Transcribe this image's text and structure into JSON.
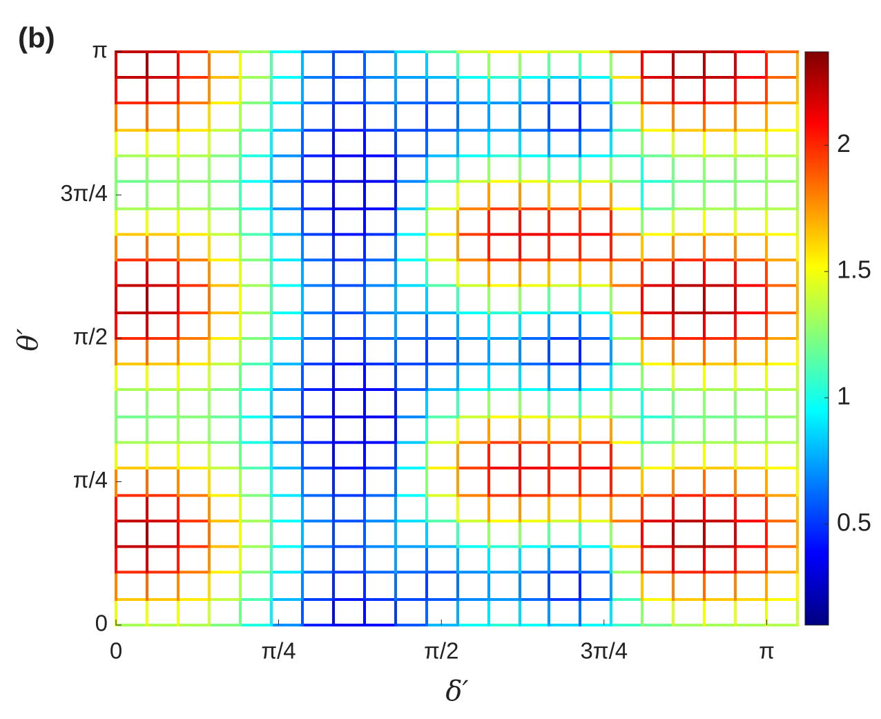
{
  "chart_data": {
    "type": "mesh",
    "panel_label": "(b)",
    "xlabel": "δ′",
    "ylabel": "θ′",
    "colormap": "jet",
    "x": [
      0,
      0.15,
      0.3,
      0.45,
      0.6,
      0.75,
      0.9,
      1.05,
      1.2,
      1.35,
      1.5,
      1.65,
      1.8,
      1.95,
      2.09,
      2.24,
      2.39,
      2.54,
      2.69,
      2.84,
      2.99,
      3.14,
      3.29
    ],
    "y": [
      0,
      0.14,
      0.29,
      0.43,
      0.57,
      0.71,
      0.86,
      1.0,
      1.14,
      1.29,
      1.43,
      1.57,
      1.71,
      1.86,
      2.0,
      2.14,
      2.28,
      2.43,
      2.57,
      2.71,
      2.86,
      3.0,
      3.14
    ],
    "z": [
      [
        1.32,
        1.33,
        1.35,
        1.32,
        1.15,
        0.88,
        0.53,
        0.37,
        0.33,
        0.45,
        0.7,
        0.9,
        1.05,
        1.03,
        0.9,
        0.83,
        1.05,
        1.09,
        1.28,
        1.33,
        1.32,
        1.34,
        1.35
      ],
      [
        1.62,
        1.66,
        1.62,
        1.5,
        1.27,
        0.97,
        0.62,
        0.43,
        0.42,
        0.57,
        0.52,
        0.64,
        0.74,
        0.7,
        0.55,
        0.45,
        0.74,
        1.45,
        1.61,
        1.66,
        1.62,
        1.58,
        1.47
      ],
      [
        1.95,
        2.03,
        1.93,
        1.7,
        1.4,
        1.08,
        0.73,
        0.5,
        0.53,
        0.7,
        0.52,
        0.64,
        0.74,
        0.7,
        0.55,
        0.45,
        0.74,
        1.85,
        1.98,
        2.03,
        1.95,
        1.85,
        1.6
      ],
      [
        2.17,
        2.27,
        2.12,
        1.83,
        1.49,
        1.14,
        0.79,
        0.54,
        0.59,
        0.79,
        0.7,
        0.9,
        1.05,
        1.03,
        0.9,
        0.83,
        1.05,
        2.11,
        2.22,
        2.27,
        2.17,
        2.03,
        1.69
      ],
      [
        2.17,
        2.27,
        2.12,
        1.83,
        1.49,
        1.14,
        0.79,
        0.54,
        0.59,
        0.79,
        0.97,
        1.3,
        1.52,
        1.53,
        1.44,
        1.39,
        1.52,
        2.11,
        2.22,
        2.27,
        2.17,
        2.03,
        1.69
      ],
      [
        1.95,
        2.03,
        1.93,
        1.7,
        1.4,
        1.08,
        0.73,
        0.5,
        0.53,
        0.7,
        1.21,
        1.66,
        1.94,
        1.98,
        1.92,
        1.9,
        1.94,
        1.85,
        1.98,
        2.03,
        1.95,
        1.85,
        1.6
      ],
      [
        1.62,
        1.66,
        1.62,
        1.5,
        1.27,
        0.97,
        0.62,
        0.43,
        0.42,
        0.57,
        1.3,
        1.8,
        2.1,
        2.15,
        2.1,
        2.1,
        2.1,
        1.45,
        1.61,
        1.66,
        1.62,
        1.58,
        1.47
      ],
      [
        1.32,
        1.33,
        1.35,
        1.32,
        1.15,
        0.88,
        0.53,
        0.37,
        0.33,
        0.45,
        1.21,
        1.66,
        1.94,
        1.98,
        1.92,
        1.9,
        1.94,
        1.09,
        1.28,
        1.33,
        1.32,
        1.34,
        1.35
      ],
      [
        1.2,
        1.2,
        1.25,
        1.25,
        1.1,
        0.85,
        0.5,
        0.35,
        0.3,
        0.4,
        0.97,
        1.3,
        1.52,
        1.53,
        1.44,
        1.39,
        1.52,
        0.95,
        1.15,
        1.2,
        1.2,
        1.25,
        1.3
      ],
      [
        1.32,
        1.33,
        1.35,
        1.32,
        1.15,
        0.88,
        0.53,
        0.37,
        0.33,
        0.45,
        0.7,
        0.9,
        1.05,
        1.03,
        0.9,
        0.83,
        1.05,
        1.09,
        1.28,
        1.33,
        1.32,
        1.34,
        1.35
      ],
      [
        1.62,
        1.66,
        1.62,
        1.5,
        1.27,
        0.97,
        0.62,
        0.43,
        0.42,
        0.57,
        0.52,
        0.64,
        0.74,
        0.7,
        0.55,
        0.45,
        0.74,
        1.45,
        1.61,
        1.66,
        1.62,
        1.58,
        1.47
      ],
      [
        1.95,
        2.03,
        1.93,
        1.7,
        1.4,
        1.08,
        0.73,
        0.5,
        0.53,
        0.7,
        0.52,
        0.64,
        0.74,
        0.7,
        0.55,
        0.45,
        0.74,
        1.85,
        1.98,
        2.03,
        1.95,
        1.85,
        1.6
      ],
      [
        2.17,
        2.27,
        2.12,
        1.83,
        1.49,
        1.14,
        0.79,
        0.54,
        0.59,
        0.79,
        0.7,
        0.9,
        1.05,
        1.03,
        0.9,
        0.83,
        1.05,
        2.11,
        2.22,
        2.27,
        2.17,
        2.03,
        1.69
      ],
      [
        2.17,
        2.27,
        2.12,
        1.83,
        1.49,
        1.14,
        0.79,
        0.54,
        0.59,
        0.79,
        0.97,
        1.3,
        1.52,
        1.53,
        1.44,
        1.39,
        1.52,
        2.11,
        2.22,
        2.27,
        2.17,
        2.03,
        1.69
      ],
      [
        1.95,
        2.03,
        1.93,
        1.7,
        1.4,
        1.08,
        0.73,
        0.5,
        0.53,
        0.7,
        1.21,
        1.66,
        1.94,
        1.98,
        1.92,
        1.9,
        1.94,
        1.85,
        1.98,
        2.03,
        1.95,
        1.85,
        1.6
      ],
      [
        1.62,
        1.66,
        1.62,
        1.5,
        1.27,
        0.97,
        0.62,
        0.43,
        0.42,
        0.57,
        1.3,
        1.8,
        2.1,
        2.15,
        2.1,
        2.1,
        2.1,
        1.45,
        1.61,
        1.66,
        1.62,
        1.58,
        1.47
      ],
      [
        1.32,
        1.33,
        1.35,
        1.32,
        1.15,
        0.88,
        0.53,
        0.37,
        0.33,
        0.45,
        1.21,
        1.66,
        1.94,
        1.98,
        1.92,
        1.9,
        1.94,
        1.09,
        1.28,
        1.33,
        1.32,
        1.34,
        1.35
      ],
      [
        1.2,
        1.2,
        1.25,
        1.25,
        1.1,
        0.85,
        0.5,
        0.35,
        0.3,
        0.4,
        0.97,
        1.3,
        1.52,
        1.53,
        1.44,
        1.39,
        1.52,
        0.95,
        1.15,
        1.2,
        1.2,
        1.25,
        1.3
      ],
      [
        1.32,
        1.33,
        1.35,
        1.32,
        1.15,
        0.88,
        0.53,
        0.37,
        0.33,
        0.45,
        0.7,
        0.9,
        1.05,
        1.03,
        0.9,
        0.83,
        1.05,
        1.09,
        1.28,
        1.33,
        1.32,
        1.34,
        1.35
      ],
      [
        1.62,
        1.66,
        1.62,
        1.5,
        1.27,
        0.97,
        0.62,
        0.43,
        0.42,
        0.57,
        0.52,
        0.64,
        0.74,
        0.7,
        0.55,
        0.45,
        0.74,
        1.45,
        1.61,
        1.66,
        1.62,
        1.58,
        1.47
      ],
      [
        1.95,
        2.03,
        1.93,
        1.7,
        1.4,
        1.08,
        0.73,
        0.5,
        0.53,
        0.7,
        0.52,
        0.64,
        0.74,
        0.7,
        0.55,
        0.45,
        0.74,
        1.85,
        1.98,
        2.03,
        1.95,
        1.85,
        1.6
      ],
      [
        2.17,
        2.27,
        2.12,
        1.83,
        1.49,
        1.14,
        0.79,
        0.54,
        0.59,
        0.79,
        0.7,
        0.9,
        1.05,
        1.03,
        0.9,
        0.83,
        1.05,
        2.11,
        2.22,
        2.27,
        2.17,
        2.03,
        1.69
      ],
      [
        2.17,
        2.27,
        2.12,
        1.83,
        1.49,
        1.14,
        0.79,
        0.54,
        0.59,
        0.79,
        0.97,
        1.3,
        1.52,
        1.53,
        1.44,
        1.39,
        1.52,
        2.11,
        2.22,
        2.27,
        2.17,
        2.03,
        1.69
      ]
    ],
    "xlim": [
      0,
      3.29
    ],
    "ylim": [
      0,
      3.14
    ],
    "xticks": [
      0,
      {
        "value": 0.785,
        "label": "π/4"
      },
      {
        "value": 1.571,
        "label": "π/2"
      },
      {
        "value": 2.356,
        "label": "3π/4"
      },
      {
        "value": 3.1416,
        "label": "π"
      }
    ],
    "yticks": [
      0,
      {
        "value": 0.785,
        "label": "π/4"
      },
      {
        "value": 1.571,
        "label": "π/2"
      },
      {
        "value": 2.356,
        "label": "3π/4"
      },
      {
        "value": 3.1416,
        "label": "π"
      }
    ],
    "clim": [
      0.1,
      2.37
    ],
    "cticks": [
      0.5,
      1,
      1.5,
      2
    ]
  }
}
